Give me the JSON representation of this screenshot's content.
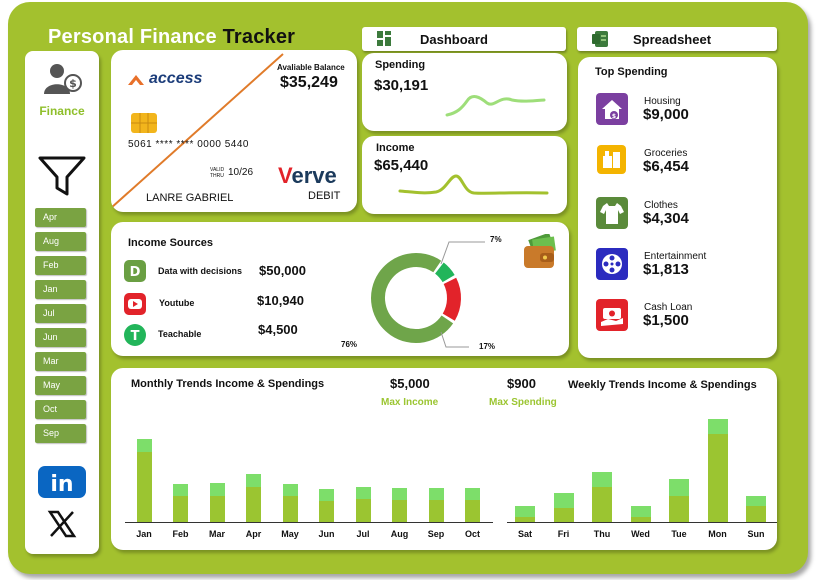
{
  "header": {
    "title_part1": "Personal Finance",
    "title_part2": "Tracker",
    "dashboard_label": "Dashboard",
    "spreadsheet_label": "Spreadsheet"
  },
  "sidebar": {
    "finance_label": "Finance",
    "months": [
      "Apr",
      "Aug",
      "Feb",
      "Jan",
      "Jul",
      "Jun",
      "Mar",
      "May",
      "Oct",
      "Sep"
    ],
    "icons": [
      "user-finance-icon",
      "filter-icon",
      "linkedin-icon",
      "x-icon"
    ]
  },
  "card": {
    "bank_name": "access",
    "balance_label": "Avaliable Balance",
    "balance_value": "$35,249",
    "card_number": "5061 **** **** 0000 5440",
    "valid_label_1": "VALID",
    "valid_label_2": "THRU",
    "valid_date": "10/26",
    "holder": "LANRE GABRIEL",
    "brand": "Verve",
    "brand_v": "V",
    "brand_rest": "erve",
    "type": "DEBIT",
    "colors": {
      "bank": "#e8702a",
      "brand_red": "#e2232a",
      "brand_blue": "#1b3a5c"
    }
  },
  "spending": {
    "label": "Spending",
    "value": "$30,191"
  },
  "income": {
    "label": "Income",
    "value": "$65,440"
  },
  "income_sources": {
    "title": "Income Sources",
    "items": [
      {
        "name": "Data with decisions",
        "value": "$50,000",
        "icon": "dwd-icon",
        "color": "#6a9f43"
      },
      {
        "name": "Youtube",
        "value": "$10,940",
        "icon": "youtube-icon",
        "color": "#e2232a"
      },
      {
        "name": "Teachable",
        "value": "$4,500",
        "icon": "teachable-icon",
        "color": "#22b55a"
      }
    ],
    "donut": [
      {
        "label": "76%",
        "fraction": 0.76,
        "color": "#6fa54a"
      },
      {
        "label": "7%",
        "fraction": 0.07,
        "color": "#22b55a"
      },
      {
        "label": "17%",
        "fraction": 0.17,
        "color": "#e2232a"
      }
    ]
  },
  "top_spending": {
    "title": "Top Spending",
    "items": [
      {
        "name": "Housing",
        "value": "$9,000",
        "icon": "house-icon",
        "color": "#7b3fa0"
      },
      {
        "name": "Groceries",
        "value": "$6,454",
        "icon": "groceries-icon",
        "color": "#f4b400"
      },
      {
        "name": "Clothes",
        "value": "$4,304",
        "icon": "clothes-icon",
        "color": "#5a8a3a"
      },
      {
        "name": "Entertainment",
        "value": "$1,813",
        "icon": "film-reel-icon",
        "color": "#2b2bbf"
      },
      {
        "name": "Cash Loan",
        "value": "$1,500",
        "icon": "cash-loan-icon",
        "color": "#e2232a"
      }
    ]
  },
  "trends": {
    "monthly_title": "Monthly Trends Income & Spendings",
    "weekly_title": "Weekly Trends Income & Spendings",
    "max_income_value": "$5,000",
    "max_income_label": "Max Income",
    "max_spending_value": "$900",
    "max_spending_label": "Max Spending",
    "colors": {
      "income": "#9bc531",
      "spending": "#7dde6a",
      "label_green": "#9bc531"
    }
  },
  "chart_data": [
    {
      "type": "bar",
      "stacked": true,
      "categories": [
        "Jan",
        "Feb",
        "Mar",
        "Apr",
        "May",
        "Jun",
        "Jul",
        "Aug",
        "Sep",
        "Oct"
      ],
      "series": [
        {
          "values": [
            4000,
            1450,
            1500,
            2000,
            1450,
            1200,
            1300,
            1250,
            1250,
            1250
          ]
        },
        {
          "values": [
            700,
            700,
            700,
            700,
            700,
            700,
            700,
            700,
            700,
            700
          ]
        }
      ],
      "ylim": [
        0,
        5000
      ],
      "grid": false
    },
    {
      "type": "bar",
      "stacked": true,
      "categories": [
        "Sat",
        "Fri",
        "Thu",
        "Wed",
        "Tue",
        "Mon",
        "Sun"
      ],
      "series": [
        {
          "values": [
            50,
            160,
            390,
            50,
            290,
            970,
            180
          ]
        },
        {
          "values": [
            130,
            160,
            160,
            130,
            180,
            170,
            110
          ]
        }
      ],
      "ylim": [
        0,
        1150
      ],
      "grid": false
    }
  ]
}
